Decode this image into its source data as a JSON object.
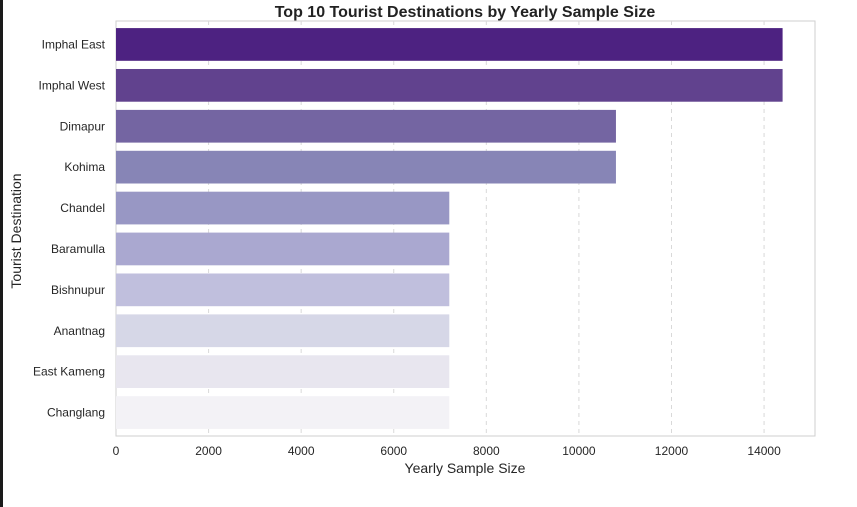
{
  "chart_data": {
    "type": "bar",
    "orientation": "horizontal",
    "title": "Top 10 Tourist Destinations by Yearly Sample Size",
    "xlabel": "Yearly Sample Size",
    "ylabel": "Tourist Destination",
    "categories": [
      "Imphal East",
      "Imphal West",
      "Dimapur",
      "Kohima",
      "Chandel",
      "Baramulla",
      "Bishnupur",
      "Anantnag",
      "East Kameng",
      "Changlang"
    ],
    "values": [
      14400,
      14400,
      10800,
      10800,
      7200,
      7200,
      7200,
      7200,
      7200,
      7200
    ],
    "colors": [
      "#4d2281",
      "#61428e",
      "#7465a2",
      "#8785b6",
      "#9897c4",
      "#aaa8d0",
      "#c0bfdd",
      "#d6d7e7",
      "#e8e6ef",
      "#f3f2f6"
    ],
    "xlim": [
      0,
      15100
    ],
    "xticks": [
      0,
      2000,
      4000,
      6000,
      8000,
      10000,
      12000,
      14000
    ],
    "grid": "x-dashed",
    "legend": "none"
  }
}
